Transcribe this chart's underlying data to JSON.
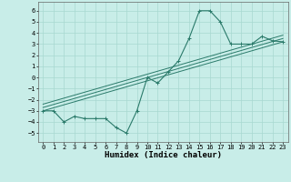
{
  "xlabel": "Humidex (Indice chaleur)",
  "x_ticks": [
    0,
    1,
    2,
    3,
    4,
    5,
    6,
    7,
    8,
    9,
    10,
    11,
    12,
    13,
    14,
    15,
    16,
    17,
    18,
    19,
    20,
    21,
    22,
    23
  ],
  "y_ticks": [
    -5,
    -4,
    -3,
    -2,
    -1,
    0,
    1,
    2,
    3,
    4,
    5,
    6
  ],
  "xlim": [
    -0.5,
    23.5
  ],
  "ylim": [
    -5.8,
    6.8
  ],
  "background_color": "#c8ede8",
  "grid_color": "#a8d8d0",
  "line_color": "#2a7a6a",
  "curve1_x": [
    0,
    1,
    2,
    3,
    4,
    5,
    6,
    7,
    8,
    9,
    10,
    11,
    12,
    13,
    14,
    15,
    16,
    17,
    18,
    19,
    20,
    21,
    22,
    23
  ],
  "curve1_y": [
    -3,
    -3,
    -4,
    -3.5,
    -3.7,
    -3.7,
    -3.7,
    -4.5,
    -5,
    -3,
    0,
    -0.5,
    0.5,
    1.5,
    3.5,
    6,
    6,
    5,
    3,
    3,
    3,
    3.7,
    3.3,
    3.2
  ],
  "curve2_x": [
    0,
    23
  ],
  "curve2_y": [
    -3.0,
    3.2
  ],
  "curve3_x": [
    0,
    23
  ],
  "curve3_y": [
    -2.7,
    3.5
  ],
  "curve4_x": [
    0,
    23
  ],
  "curve4_y": [
    -2.4,
    3.8
  ],
  "label_fontsize": 5.5,
  "tick_fontsize": 5.0,
  "xlabel_fontsize": 6.5
}
